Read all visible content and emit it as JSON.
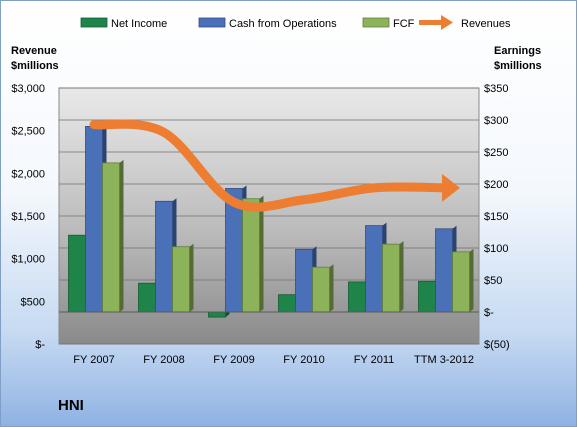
{
  "company": "HNI",
  "chart_data": {
    "type": "bar",
    "categories": [
      "FY 2007",
      "FY 2008",
      "FY 2009",
      "FY 2010",
      "FY 2011",
      "TTM 3-2012"
    ],
    "series": [
      {
        "name": "Net Income",
        "axis": "right",
        "type": "bar",
        "color": "#1e8449",
        "values": [
          120,
          45,
          -8,
          27,
          47,
          48
        ]
      },
      {
        "name": "Cash from Operations",
        "axis": "right",
        "type": "bar",
        "color": "#4a70b8",
        "values": [
          290,
          173,
          193,
          98,
          135,
          130
        ]
      },
      {
        "name": "FCF",
        "axis": "right",
        "type": "bar",
        "color": "#8db35a",
        "values": [
          233,
          102,
          177,
          70,
          106,
          94
        ]
      },
      {
        "name": "Revenues",
        "axis": "left",
        "type": "line",
        "color": "#ed7d31",
        "values": [
          2570,
          2480,
          1660,
          1690,
          1830,
          1830
        ]
      }
    ],
    "left_axis": {
      "title_line1": "Revenue",
      "title_line2": "$millions",
      "min": 0,
      "max": 3000,
      "step": 500,
      "tick_labels": [
        "$-",
        "$500",
        "$1,000",
        "$1,500",
        "$2,000",
        "$2,500",
        "$3,000"
      ]
    },
    "right_axis": {
      "title_line1": "Earnings",
      "title_line2": "$millions",
      "min": -50,
      "max": 350,
      "step": 50,
      "tick_labels": [
        "$(50)",
        "$-",
        "$50",
        "$100",
        "$150",
        "$200",
        "$250",
        "$300",
        "$350"
      ]
    },
    "grid": true,
    "legend": "top"
  }
}
